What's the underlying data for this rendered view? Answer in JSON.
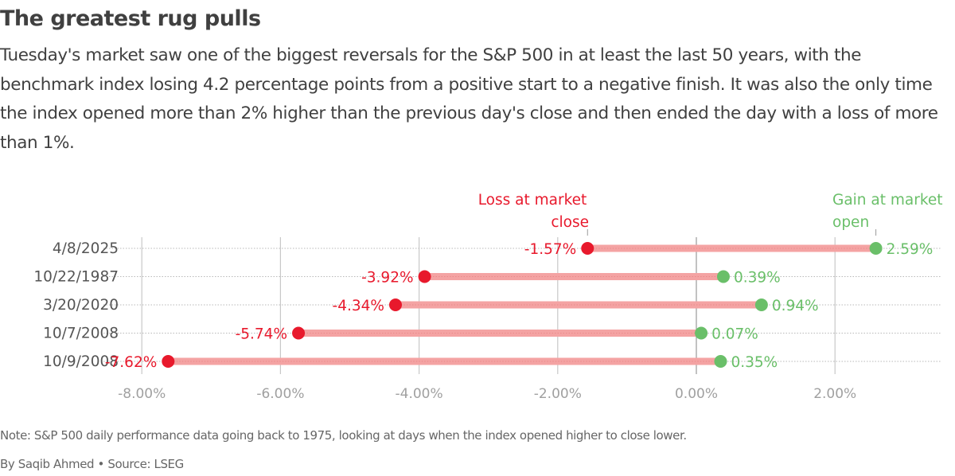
{
  "header": {
    "title": "The greatest rug pulls",
    "subtitle": "Tuesday's market saw one of the biggest reversals for the S&P 500 in at least the last 50 years, with the benchmark index losing 4.2 percentage points from a positive start to a negative finish. It was also the only time the index opened more than 2% higher than the previous day's close and then ended the day with a loss of more than 1%."
  },
  "footer": {
    "note": "Note: S&P 500 daily performance data going back to 1975, looking at days when the index opened higher to close lower.",
    "byline": "By Saqib Ahmed • Source: LSEG"
  },
  "colors": {
    "loss": "#e8192c",
    "gain": "#6abf69",
    "bar": "#f4a3a3",
    "grid": "#c8c8c8",
    "axis_text": "#a0a0a0",
    "category_text": "#555555"
  },
  "chart_data": {
    "type": "dumbbell",
    "title": "The greatest rug pulls",
    "xlabel": "",
    "ylabel": "",
    "xlim": [
      -8.4,
      3.5
    ],
    "x_ticks": [
      -8,
      -6,
      -4,
      -2,
      0,
      2
    ],
    "x_tick_labels": [
      "-8.00%",
      "-6.00%",
      "-4.00%",
      "-2.00%",
      "0.00%",
      "2.00%"
    ],
    "grid": true,
    "categories": [
      "4/8/2025",
      "10/22/1987",
      "3/20/2020",
      "10/7/2008",
      "10/9/2008"
    ],
    "series": [
      {
        "name": "Loss at market close",
        "values": [
          -1.57,
          -3.92,
          -4.34,
          -5.74,
          -7.62
        ],
        "labels": [
          "-1.57%",
          "-3.92%",
          "-4.34%",
          "-5.74%",
          "-7.62%"
        ]
      },
      {
        "name": "Gain at market open",
        "values": [
          2.59,
          0.39,
          0.94,
          0.07,
          0.35
        ],
        "labels": [
          "2.59%",
          "0.39%",
          "0.94%",
          "0.07%",
          "0.35%"
        ]
      }
    ],
    "annotations": [
      {
        "series": "Loss at market close",
        "lines": [
          "Loss at market",
          "close"
        ],
        "anchor_row": 0
      },
      {
        "series": "Gain at market open",
        "lines": [
          "Gain at market",
          "open"
        ],
        "anchor_row": 0
      }
    ]
  }
}
